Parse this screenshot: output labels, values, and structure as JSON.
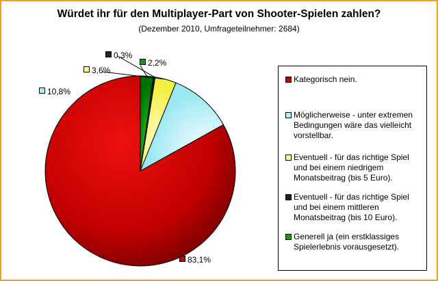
{
  "chart_data": {
    "type": "pie",
    "title": "Würdet ihr für den Multiplayer-Part von Shooter-Spielen zahlen?",
    "subtitle": "(Dezember 2010, Umfrageteilnehmer: 2684)",
    "slices": [
      {
        "label": "Kategorisch nein.",
        "value": 83.1,
        "display": "83,1%",
        "color": "#c80000"
      },
      {
        "label": "Möglicherweise - unter extremen Bedingungen wäre das vielleicht vorstellbar.",
        "value": 10.8,
        "display": "10,8%",
        "color": "#aaf0f8"
      },
      {
        "label": "Eventuell - für das richtige Spiel und bei einem niedrigem Monatsbeitrag (bis 5 Euro).",
        "value": 3.6,
        "display": "3,6%",
        "color": "#ffff88"
      },
      {
        "label": "Eventuell - für das richtige Spiel und bei einem mittleren Monatsbeitrag (bis 10 Euro).",
        "value": 0.3,
        "display": "0,3%",
        "color": "#222222"
      },
      {
        "label": "Generell ja (ein erstklassiges Spielerlebnis vorausgesetzt).",
        "value": 2.2,
        "display": "2,2%",
        "color": "#0ca00c"
      }
    ],
    "legend_position": "right"
  }
}
